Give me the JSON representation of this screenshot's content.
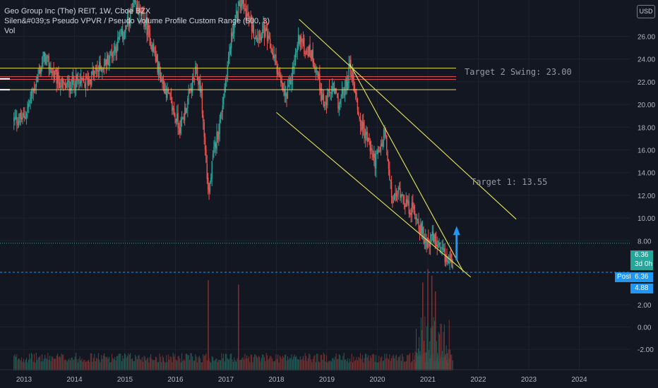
{
  "header": {
    "title": "Geo Group Inc (The) REIT, 1W, Cboe BZX",
    "indicator": "Silen&#039;s Pseudo VPVR / Pseudo Volume Profile Custom Range (500, 3)",
    "volume_label": "Vol",
    "currency": "USD"
  },
  "price_tags": {
    "last_price": "6.36",
    "countdown": "3d 0h",
    "post_label": "Post",
    "post_price": "6.36",
    "low_tag": "4.88"
  },
  "annotations": {
    "target1": "Target 1: 13.55",
    "target2": "Target 2 Swing: 23.00"
  },
  "colors": {
    "background": "#131722",
    "up": "#26a69a",
    "down": "#ef5350",
    "trendline": "#e6e65a",
    "hline_yellow": "#e6d84e",
    "hline_red": "#ef5350",
    "arrow": "#2196f3"
  },
  "chart_data": [
    {
      "type": "candlestick",
      "title": "Geo Group Inc (The) REIT, 1W, Cboe BZX",
      "x_tick_labels": [
        "2013",
        "2014",
        "2015",
        "2016",
        "2017",
        "2018",
        "2019",
        "2020",
        "2021",
        "2022",
        "2023",
        "2024"
      ],
      "y_tick_labels": [
        "26.00",
        "24.00",
        "22.00",
        "20.00",
        "18.00",
        "16.00",
        "14.00",
        "12.00",
        "10.00",
        "8.00"
      ],
      "ylim": [
        4.6,
        28.5
      ],
      "xlim": [
        2012.7,
        2025.1
      ],
      "price_path": [
        {
          "t": 2012.8,
          "p": 18.6
        },
        {
          "t": 2013.0,
          "p": 18.8
        },
        {
          "t": 2013.2,
          "p": 21.5
        },
        {
          "t": 2013.4,
          "p": 24.2
        },
        {
          "t": 2013.6,
          "p": 22.5
        },
        {
          "t": 2013.8,
          "p": 21.5
        },
        {
          "t": 2014.0,
          "p": 22.0
        },
        {
          "t": 2014.2,
          "p": 21.8
        },
        {
          "t": 2014.4,
          "p": 22.8
        },
        {
          "t": 2014.6,
          "p": 23.6
        },
        {
          "t": 2014.8,
          "p": 25.0
        },
        {
          "t": 2015.0,
          "p": 26.5
        },
        {
          "t": 2015.2,
          "p": 28.8
        },
        {
          "t": 2015.4,
          "p": 27.2
        },
        {
          "t": 2015.55,
          "p": 25.0
        },
        {
          "t": 2015.7,
          "p": 22.5
        },
        {
          "t": 2015.85,
          "p": 20.8
        },
        {
          "t": 2016.0,
          "p": 18.9
        },
        {
          "t": 2016.1,
          "p": 18.0
        },
        {
          "t": 2016.25,
          "p": 20.5
        },
        {
          "t": 2016.4,
          "p": 22.8
        },
        {
          "t": 2016.5,
          "p": 21.5
        },
        {
          "t": 2016.62,
          "p": 14.0
        },
        {
          "t": 2016.66,
          "p": 12.0
        },
        {
          "t": 2016.75,
          "p": 15.5
        },
        {
          "t": 2016.9,
          "p": 19.0
        },
        {
          "t": 2017.0,
          "p": 22.5
        },
        {
          "t": 2017.15,
          "p": 27.0
        },
        {
          "t": 2017.3,
          "p": 29.0
        },
        {
          "t": 2017.45,
          "p": 27.5
        },
        {
          "t": 2017.6,
          "p": 26.0
        },
        {
          "t": 2017.75,
          "p": 26.5
        },
        {
          "t": 2017.9,
          "p": 24.8
        },
        {
          "t": 2018.0,
          "p": 23.5
        },
        {
          "t": 2018.1,
          "p": 21.5
        },
        {
          "t": 2018.2,
          "p": 20.5
        },
        {
          "t": 2018.3,
          "p": 22.5
        },
        {
          "t": 2018.45,
          "p": 26.0
        },
        {
          "t": 2018.55,
          "p": 25.0
        },
        {
          "t": 2018.7,
          "p": 24.5
        },
        {
          "t": 2018.85,
          "p": 22.0
        },
        {
          "t": 2018.95,
          "p": 19.8
        },
        {
          "t": 2019.1,
          "p": 21.5
        },
        {
          "t": 2019.25,
          "p": 20.0
        },
        {
          "t": 2019.4,
          "p": 22.0
        },
        {
          "t": 2019.45,
          "p": 23.6
        },
        {
          "t": 2019.55,
          "p": 21.5
        },
        {
          "t": 2019.65,
          "p": 18.5
        },
        {
          "t": 2019.8,
          "p": 17.0
        },
        {
          "t": 2019.95,
          "p": 15.0
        },
        {
          "t": 2020.05,
          "p": 15.8
        },
        {
          "t": 2020.15,
          "p": 17.8
        },
        {
          "t": 2020.22,
          "p": 14.0
        },
        {
          "t": 2020.3,
          "p": 11.5
        },
        {
          "t": 2020.45,
          "p": 12.5
        },
        {
          "t": 2020.6,
          "p": 11.0
        },
        {
          "t": 2020.75,
          "p": 10.5
        },
        {
          "t": 2020.85,
          "p": 9.0
        },
        {
          "t": 2020.95,
          "p": 8.0
        },
        {
          "t": 2021.1,
          "p": 8.2
        },
        {
          "t": 2021.25,
          "p": 7.0
        },
        {
          "t": 2021.4,
          "p": 6.2
        },
        {
          "t": 2021.5,
          "p": 6.4
        }
      ],
      "horizontal_levels": [
        {
          "price": 23.2,
          "color": "hline_yellow"
        },
        {
          "price": 22.45,
          "color": "hline_red"
        },
        {
          "price": 22.2,
          "color": "hline_red"
        },
        {
          "price": 21.3,
          "color": "hline_yellow"
        }
      ],
      "trendlines": [
        {
          "t1": 2018.45,
          "p1": 27.5,
          "t2": 2022.75,
          "p2": 9.9
        },
        {
          "t1": 2018.0,
          "p1": 19.3,
          "t2": 2021.85,
          "p2": 4.8
        },
        {
          "t1": 2019.45,
          "p1": 23.6,
          "t2": 2021.7,
          "p2": 5.3
        }
      ],
      "target_levels": {
        "target1": 13.55,
        "target2": 23.0
      },
      "last_price": 6.36,
      "post_price": 6.36,
      "low_tag_price": 4.88
    },
    {
      "type": "bar",
      "title": "Vol",
      "y_tick_labels": [
        "2.00",
        "0.00",
        "-2.00"
      ],
      "ylim": [
        -4.0,
        5.5
      ],
      "spikes": [
        {
          "t": 2016.65,
          "v": 4.2
        },
        {
          "t": 2017.25,
          "v": 3.8
        },
        {
          "t": 2020.9,
          "v": 4.0
        },
        {
          "t": 2021.0,
          "v": 5.2
        },
        {
          "t": 2021.08,
          "v": 4.6
        },
        {
          "t": 2021.15,
          "v": 3.2
        }
      ]
    }
  ]
}
